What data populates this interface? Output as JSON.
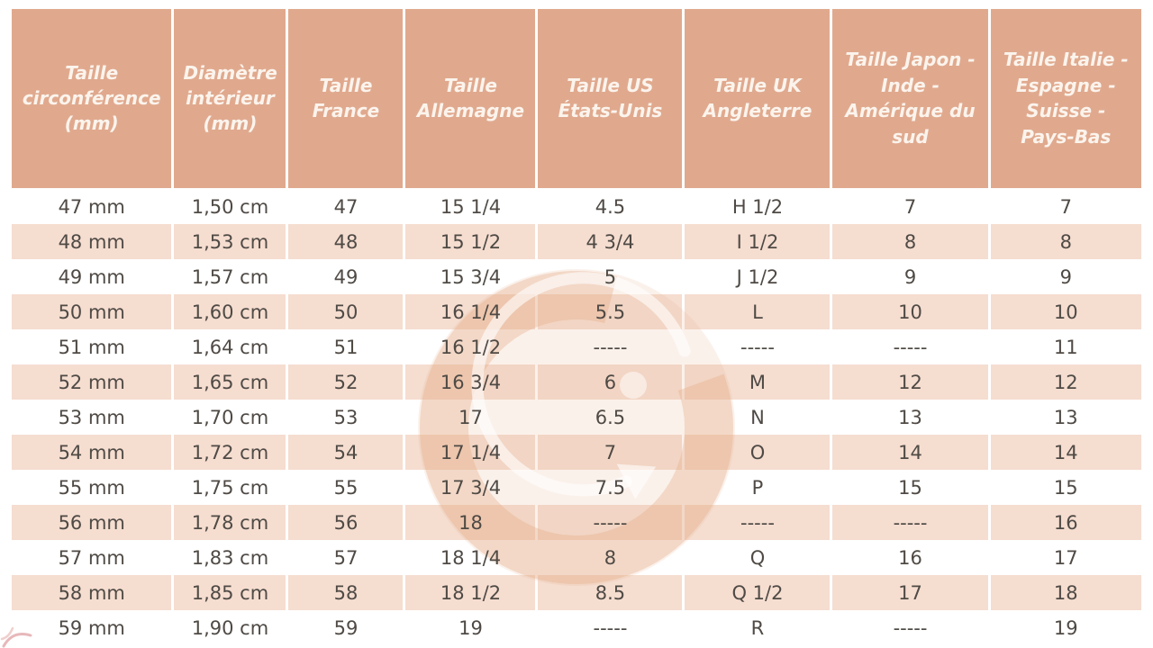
{
  "colors": {
    "header_bg": "#e0a98e",
    "header_text": "#fbf4ed",
    "row_pink": "#f5ddd0",
    "row_white": "#ffffff",
    "cell_text": "#4f4a45",
    "divider": "#ffffff",
    "watermark": "#e8ad87"
  },
  "watermark": {
    "icon": "g-logo-watermark"
  },
  "table": {
    "empty_marker": "-----",
    "columns": [
      "Taille circonférence (mm)",
      "Diamètre intérieur (mm)",
      "Taille France",
      "Taille Allemagne",
      "Taille US États-Unis",
      "Taille UK Angleterre",
      "Taille Japon - Inde - Amérique du sud",
      "Taille Italie - Espagne - Suisse - Pays-Bas"
    ],
    "rows": [
      [
        "47 mm",
        "1,50 cm",
        "47",
        "15 1/4",
        "4.5",
        "H 1/2",
        "7",
        "7"
      ],
      [
        "48 mm",
        "1,53 cm",
        "48",
        "15 1/2",
        "4 3/4",
        "I 1/2",
        "8",
        "8"
      ],
      [
        "49 mm",
        "1,57 cm",
        "49",
        "15 3/4",
        "5",
        "J 1/2",
        "9",
        "9"
      ],
      [
        "50 mm",
        "1,60 cm",
        "50",
        "16 1/4",
        "5.5",
        "L",
        "10",
        "10"
      ],
      [
        "51 mm",
        "1,64 cm",
        "51",
        "16 1/2",
        "-----",
        "-----",
        "-----",
        "11"
      ],
      [
        "52 mm",
        "1,65 cm",
        "52",
        "16 3/4",
        "6",
        "M",
        "12",
        "12"
      ],
      [
        "53 mm",
        "1,70 cm",
        "53",
        "17",
        "6.5",
        "N",
        "13",
        "13"
      ],
      [
        "54 mm",
        "1,72 cm",
        "54",
        "17 1/4",
        "7",
        "O",
        "14",
        "14"
      ],
      [
        "55 mm",
        "1,75 cm",
        "55",
        "17 3/4",
        "7.5",
        "P",
        "15",
        "15"
      ],
      [
        "56 mm",
        "1,78 cm",
        "56",
        "18",
        "-----",
        "-----",
        "-----",
        "16"
      ],
      [
        "57 mm",
        "1,83 cm",
        "57",
        "18 1/4",
        "8",
        "Q",
        "16",
        "17"
      ],
      [
        "58 mm",
        "1,85 cm",
        "58",
        "18 1/2",
        "8.5",
        "Q 1/2",
        "17",
        "18"
      ],
      [
        "59 mm",
        "1,90 cm",
        "59",
        "19",
        "-----",
        "R",
        "-----",
        "19"
      ]
    ]
  }
}
